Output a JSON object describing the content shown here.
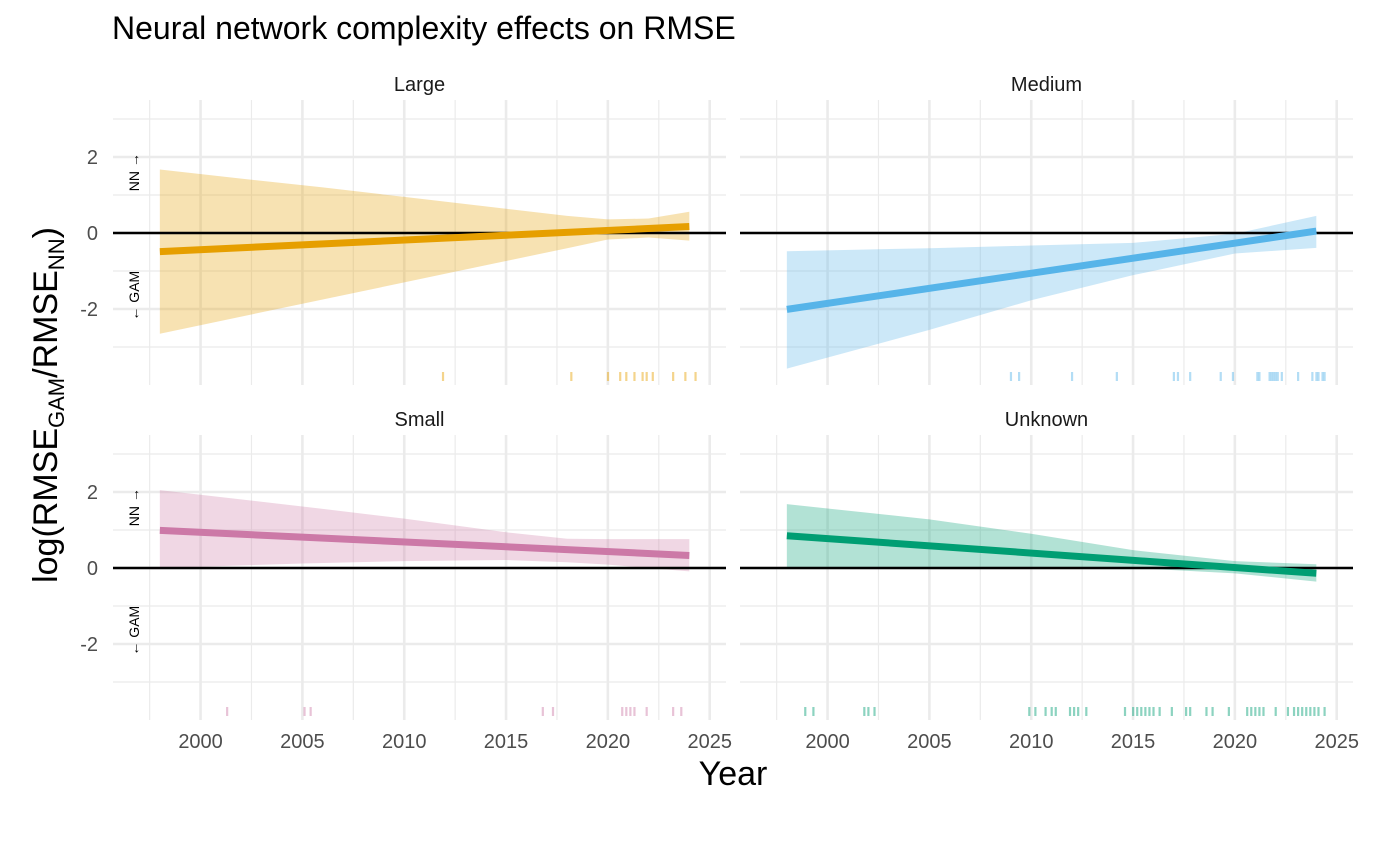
{
  "title": "Neural network complexity effects on RMSE",
  "chart_data": {
    "type": "line",
    "title": "Neural network complexity effects on RMSE",
    "xlabel": "Year",
    "ylabel": {
      "prefix": "log",
      "numerator": "RMSE",
      "numerator_sub": "GAM",
      "denominator": "RMSE",
      "denominator_sub": "NN"
    },
    "xlim": [
      1995.7,
      2025.8
    ],
    "ylim": [
      -4.0,
      3.5
    ],
    "x_ticks": [
      2000,
      2005,
      2010,
      2015,
      2020,
      2025
    ],
    "x_tick_labels": [
      "2000",
      "2005",
      "2010",
      "2015",
      "2020",
      "2025"
    ],
    "y_ticks": [
      -2,
      0,
      2
    ],
    "y_tick_labels": [
      "-2",
      "0",
      "2"
    ],
    "grid": true,
    "reference_line": 0,
    "annotations": {
      "up": "NN →",
      "down": "← GAM"
    },
    "panels": [
      {
        "name": "Large",
        "color": "#E69F00",
        "line": {
          "x": [
            1998,
            2024
          ],
          "y": [
            -0.49,
            0.17
          ]
        },
        "ribbon": {
          "x": [
            1998,
            2002,
            2006,
            2010,
            2014,
            2018,
            2020,
            2022,
            2024
          ],
          "upper": [
            1.67,
            1.43,
            1.2,
            0.95,
            0.7,
            0.45,
            0.36,
            0.38,
            0.56
          ],
          "lower": [
            -2.65,
            -2.2,
            -1.75,
            -1.3,
            -0.85,
            -0.4,
            -0.17,
            -0.12,
            -0.2
          ]
        },
        "rug": [
          2011.9,
          2018.2,
          2020.0,
          2020.6,
          2020.9,
          2021.3,
          2021.7,
          2021.9,
          2022.2,
          2023.2,
          2023.8,
          2024.3
        ]
      },
      {
        "name": "Medium",
        "color": "#56B4E9",
        "line": {
          "x": [
            1998,
            2024
          ],
          "y": [
            -2.01,
            0.05
          ]
        },
        "ribbon": {
          "x": [
            1998,
            2005,
            2010,
            2015,
            2020,
            2024
          ],
          "upper": [
            -0.48,
            -0.4,
            -0.33,
            -0.26,
            -0.02,
            0.45
          ],
          "lower": [
            -3.57,
            -2.55,
            -1.77,
            -1.11,
            -0.54,
            -0.39
          ]
        },
        "rug": [
          2009.0,
          2009.4,
          2012.0,
          2014.2,
          2017.0,
          2017.2,
          2017.8,
          2019.3,
          2019.9,
          2021.1,
          2021.2,
          2021.7,
          2021.8,
          2021.9,
          2022.0,
          2022.1,
          2022.3,
          2023.1,
          2023.8,
          2024.0,
          2024.1,
          2024.3,
          2024.4
        ]
      },
      {
        "name": "Small",
        "color": "#CC79A7",
        "line": {
          "x": [
            1998,
            2024
          ],
          "y": [
            0.99,
            0.33
          ]
        },
        "ribbon": {
          "x": [
            1998,
            2005,
            2010,
            2015,
            2018,
            2020,
            2024
          ],
          "upper": [
            2.05,
            1.62,
            1.3,
            0.94,
            0.77,
            0.76,
            0.76
          ],
          "lower": [
            0.0,
            0.12,
            0.18,
            0.21,
            0.15,
            0.09,
            -0.09
          ]
        },
        "rug": [
          2001.3,
          2005.1,
          2005.4,
          2016.8,
          2017.3,
          2020.7,
          2020.9,
          2021.1,
          2021.3,
          2021.9,
          2023.2,
          2023.6
        ]
      },
      {
        "name": "Unknown",
        "color": "#009E73",
        "line": {
          "x": [
            1998,
            2024
          ],
          "y": [
            0.85,
            -0.14
          ]
        },
        "ribbon": {
          "x": [
            1998,
            2005,
            2010,
            2015,
            2020,
            2024
          ],
          "upper": [
            1.68,
            1.28,
            0.9,
            0.47,
            0.18,
            0.1
          ],
          "lower": [
            0.0,
            0.0,
            0.0,
            0.0,
            -0.14,
            -0.36
          ]
        },
        "rug": [
          1998.9,
          1999.3,
          2001.8,
          2002.0,
          2002.3,
          2009.9,
          2010.2,
          2010.7,
          2011.0,
          2011.2,
          2011.9,
          2012.1,
          2012.3,
          2012.7,
          2014.6,
          2015.0,
          2015.2,
          2015.4,
          2015.6,
          2015.8,
          2016.0,
          2016.3,
          2016.9,
          2017.6,
          2017.8,
          2018.6,
          2018.9,
          2019.7,
          2020.6,
          2020.8,
          2021.0,
          2021.2,
          2021.4,
          2022.0,
          2022.6,
          2022.9,
          2023.1,
          2023.3,
          2023.5,
          2023.7,
          2023.9,
          2024.1,
          2024.4
        ]
      }
    ]
  }
}
